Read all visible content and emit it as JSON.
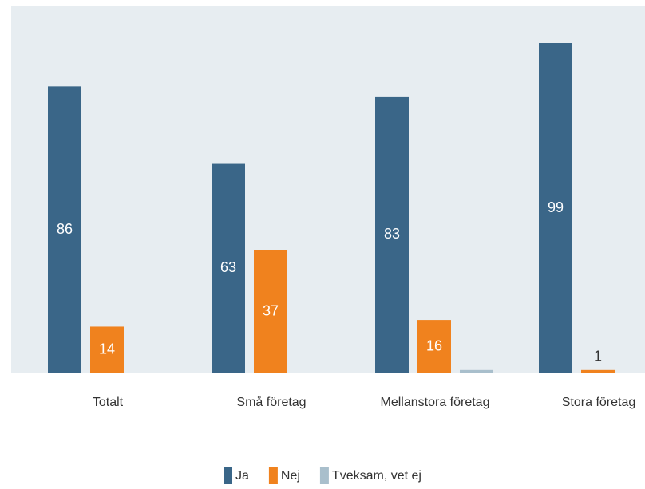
{
  "chart_data": {
    "type": "bar",
    "categories": [
      "Totalt",
      "Små företag",
      "Mellanstora företag",
      "Stora företag"
    ],
    "series": [
      {
        "name": "Ja",
        "color": "#3a6688",
        "values": [
          86,
          63,
          83,
          99
        ],
        "show_labels": true
      },
      {
        "name": "Nej",
        "color": "#f0821e",
        "values": [
          14,
          37,
          16,
          1
        ],
        "show_labels": true
      },
      {
        "name": "Tveksam, vet ej",
        "color": "#a9bfcc",
        "values": [
          null,
          null,
          1,
          null
        ],
        "show_labels": false
      }
    ],
    "ylim": [
      0,
      110
    ]
  }
}
